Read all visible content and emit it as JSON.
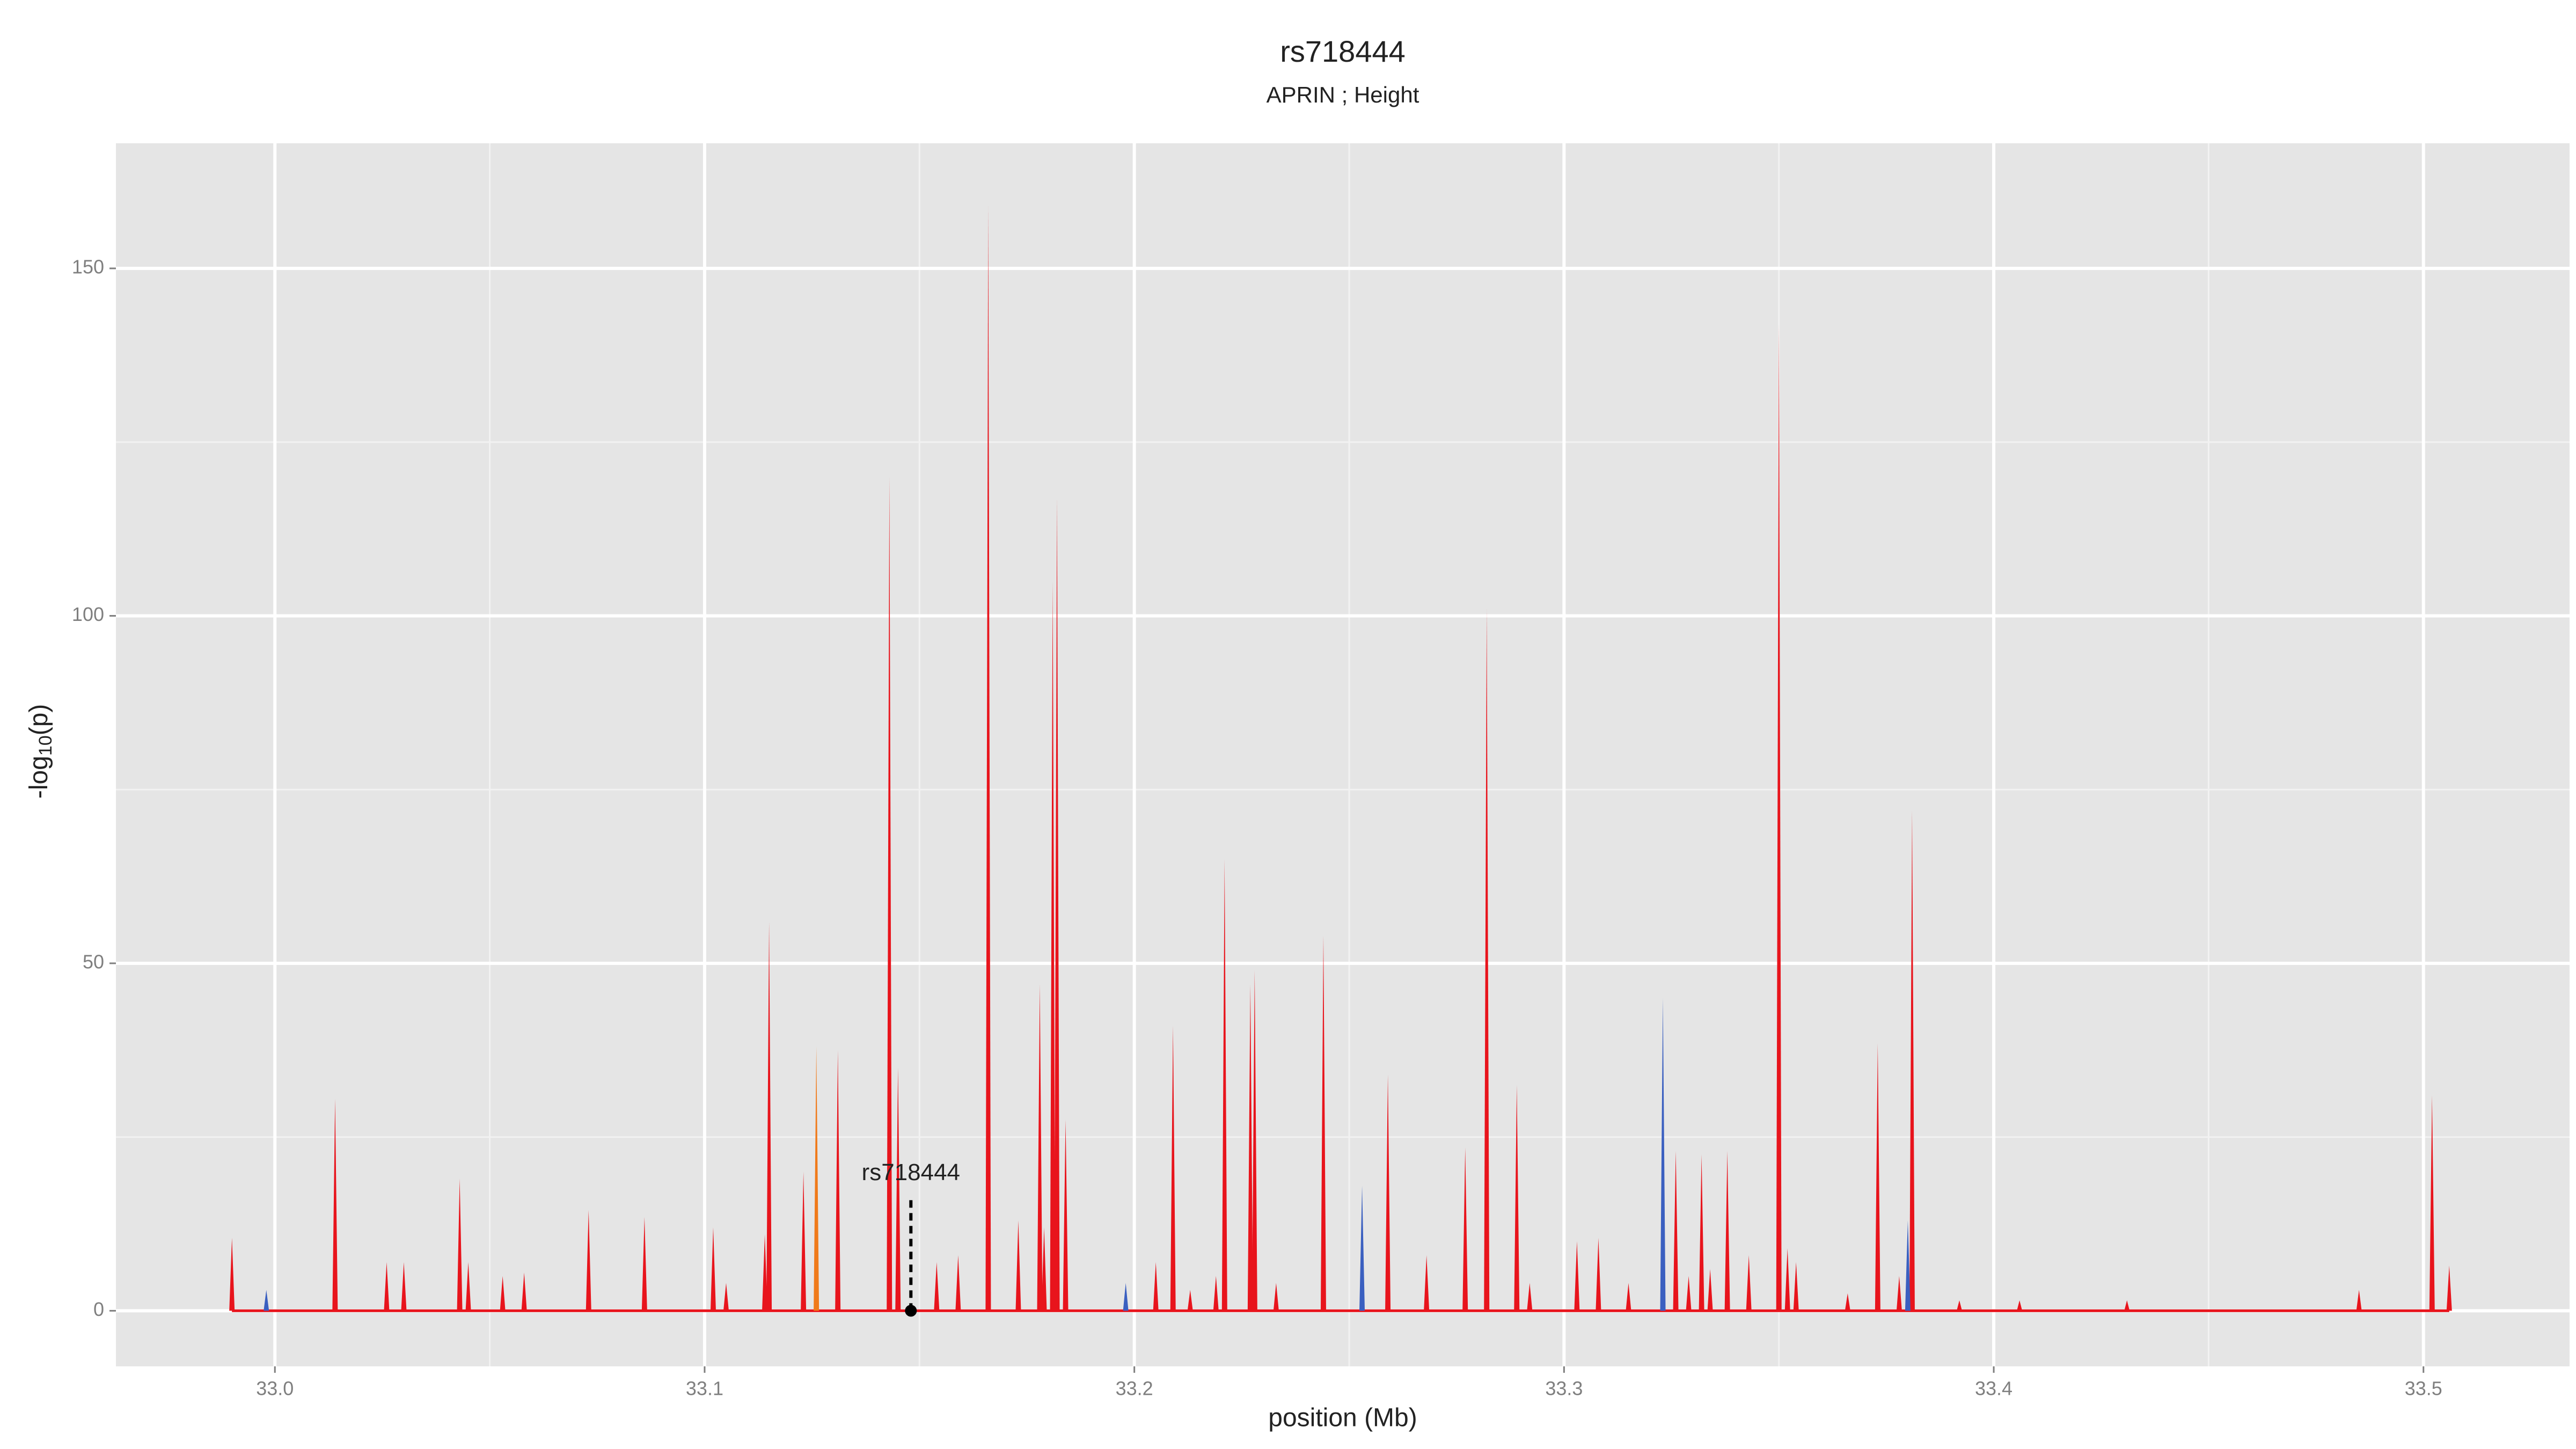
{
  "chart_data": {
    "type": "spike",
    "title": "rs718444",
    "subtitle": "APRIN ; Height",
    "x_label": "position (Mb)",
    "y_label": {
      "prefix": "-log",
      "sub": "10",
      "suffix": "(p)"
    },
    "xlim": [
      32.963,
      33.534
    ],
    "ylim": [
      -8,
      168
    ],
    "xticks": [
      {
        "value": 33,
        "label": "33.0"
      },
      33.1,
      33.2,
      33.3,
      33.4,
      33.5
    ],
    "yticks": [
      0,
      50,
      100,
      150
    ],
    "grid": true,
    "series": [
      {
        "color": "#e8141c",
        "x": [
          32.99,
          33.014,
          33.026,
          33.03,
          33.043,
          33.045,
          33.053,
          33.058,
          33.073,
          33.086,
          33.102,
          33.105,
          33.114,
          33.115,
          33.123,
          33.131,
          33.143,
          33.145,
          33.154,
          33.159,
          33.166,
          33.173,
          33.178,
          33.179,
          33.181,
          33.182,
          33.184,
          33.205,
          33.209,
          33.213,
          33.219,
          33.221,
          33.227,
          33.228,
          33.233,
          33.244,
          33.259,
          33.268,
          33.277,
          33.282,
          33.289,
          33.292,
          33.303,
          33.308,
          33.315,
          33.326,
          33.329,
          33.332,
          33.334,
          33.338,
          33.343,
          33.35,
          33.352,
          33.354,
          33.366,
          33.373,
          33.378,
          33.381,
          33.392,
          33.406,
          33.431,
          33.485,
          33.502,
          33.506
        ],
        "values": [
          10.5,
          30.5,
          7,
          7,
          19,
          7,
          5,
          5.5,
          14.5,
          13.5,
          12,
          4,
          11,
          56,
          20,
          37.5,
          120,
          35,
          7,
          8,
          159,
          13,
          47,
          12,
          105,
          117,
          27.5,
          7,
          41,
          3,
          5,
          65,
          47,
          49,
          4,
          54,
          34,
          8,
          23.5,
          101,
          32.5,
          4,
          10,
          10.5,
          4,
          23,
          5,
          22.5,
          6,
          23,
          8,
          142,
          9,
          7,
          2.5,
          38.5,
          5,
          72,
          1.5,
          1.5,
          1.5,
          3,
          31,
          6.5
        ]
      },
      {
        "color": "#3a5fc0",
        "x": [
          32.998,
          33.198,
          33.253,
          33.323,
          33.38
        ],
        "values": [
          3,
          4,
          18,
          45,
          13
        ]
      },
      {
        "color": "#f07a1a",
        "x": [
          33.126
        ],
        "values": [
          38
        ]
      }
    ],
    "annotation": {
      "text": "rs718444",
      "x": 33.148,
      "y": 0
    }
  }
}
